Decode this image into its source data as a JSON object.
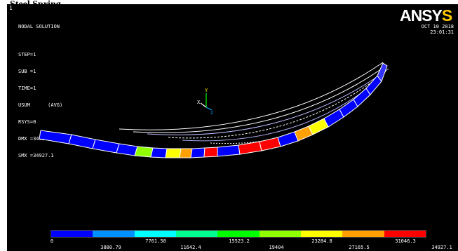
{
  "header": {
    "title": "Steel Spring"
  },
  "window": {
    "number": "1"
  },
  "info": [
    "NODAL SOLUTION",
    "",
    "STEP=1",
    "SUB =1",
    "TIME=1",
    "USUM      (AVG)",
    "RSYS=0",
    "DMX =34927.1",
    "SMX =34927.1"
  ],
  "brand": {
    "main": "ANSY",
    "tail": "S"
  },
  "date": {
    "day": "OCT 10 2018",
    "time": "23:01:31"
  },
  "axis": {
    "x": "X",
    "y": "Y",
    "z": "Z"
  },
  "legend": {
    "colors": [
      "#0000ff",
      "#0090ff",
      "#00ffff",
      "#00ff90",
      "#00ff00",
      "#90ff00",
      "#ffff00",
      "#ffa000",
      "#ff0000"
    ],
    "top_labels": [
      "7761.58",
      "15523.2",
      "23284.8",
      "31046.3"
    ],
    "bottom_labels": [
      "0",
      "3880.79",
      "11642.4",
      "19404",
      "27165.5",
      "34927.1"
    ]
  }
}
